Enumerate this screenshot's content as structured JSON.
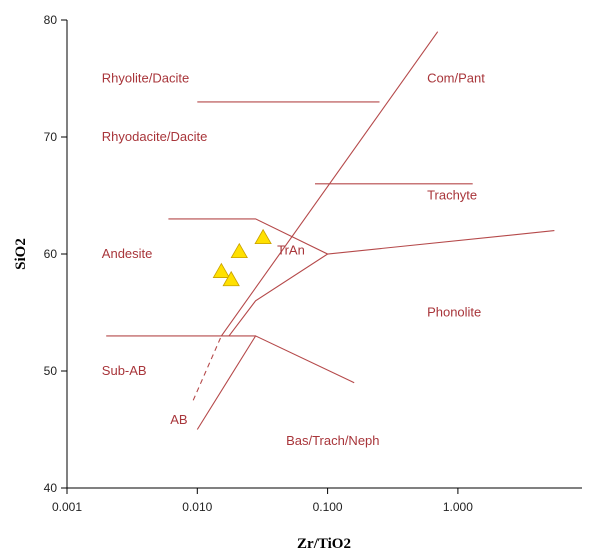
{
  "chart_data": {
    "type": "scatter",
    "title": "",
    "xlabel": "Zr/TiO2",
    "ylabel": "SiO2",
    "x_scale": "log",
    "xlim": [
      0.001,
      10
    ],
    "ylim": [
      40,
      80
    ],
    "x_ticks": [
      0.001,
      0.01,
      0.1,
      1
    ],
    "x_tick_labels": [
      "0.001",
      "0.010",
      "0.100",
      "1.000"
    ],
    "y_ticks": [
      40,
      50,
      60,
      70,
      80
    ],
    "y_tick_labels": [
      "40",
      "50",
      "60",
      "70",
      "80"
    ],
    "grid": false,
    "legend": "none",
    "colors": {
      "field": "#b5494a",
      "label": "#a8353a",
      "sample_fill": "#ffe000",
      "sample_edge": "#c8a000"
    },
    "points": [
      {
        "x": 0.0153,
        "y": 58.5
      },
      {
        "x": 0.0182,
        "y": 57.8
      },
      {
        "x": 0.021,
        "y": 60.2
      },
      {
        "x": 0.032,
        "y": 61.4
      }
    ],
    "field_lines": [
      {
        "style": "solid",
        "points": [
          [
            0.0153,
            53.0
          ],
          [
            0.7,
            79.0
          ]
        ]
      },
      {
        "style": "dashed",
        "points": [
          [
            0.0093,
            47.5
          ],
          [
            0.0153,
            53.0
          ]
        ]
      },
      {
        "style": "solid",
        "points": [
          [
            0.01,
            73.0
          ],
          [
            0.25,
            73.0
          ]
        ]
      },
      {
        "style": "solid",
        "points": [
          [
            0.08,
            66.0
          ],
          [
            1.3,
            66.0
          ]
        ]
      },
      {
        "style": "solid",
        "points": [
          [
            0.006,
            63.0
          ],
          [
            0.028,
            63.0
          ],
          [
            0.1,
            60.0
          ],
          [
            5.5,
            62.0
          ]
        ]
      },
      {
        "style": "solid",
        "points": [
          [
            0.002,
            53.0
          ],
          [
            0.028,
            53.0
          ]
        ]
      },
      {
        "style": "solid",
        "points": [
          [
            0.01,
            45.0
          ],
          [
            0.028,
            53.0
          ],
          [
            0.16,
            49.0
          ]
        ]
      },
      {
        "style": "solid",
        "points": [
          [
            0.0175,
            53.0
          ],
          [
            0.028,
            56.0
          ],
          [
            0.1,
            60.0
          ]
        ]
      }
    ],
    "field_labels": [
      {
        "text": "Rhyolite/Dacite",
        "x": 0.00185,
        "y": 75.0
      },
      {
        "text": "Rhyodacite/Dacite",
        "x": 0.00185,
        "y": 70.0
      },
      {
        "text": "Com/Pant",
        "x": 0.58,
        "y": 75.0
      },
      {
        "text": "Trachyte",
        "x": 0.58,
        "y": 65.0
      },
      {
        "text": "Andesite",
        "x": 0.00185,
        "y": 60.0
      },
      {
        "text": "TrAn",
        "x": 0.041,
        "y": 60.3
      },
      {
        "text": "Phonolite",
        "x": 0.58,
        "y": 55.0
      },
      {
        "text": "Sub-AB",
        "x": 0.00185,
        "y": 50.0
      },
      {
        "text": "AB",
        "x": 0.0062,
        "y": 45.8
      },
      {
        "text": "Bas/Trach/Neph",
        "x": 0.048,
        "y": 44.0
      }
    ]
  }
}
